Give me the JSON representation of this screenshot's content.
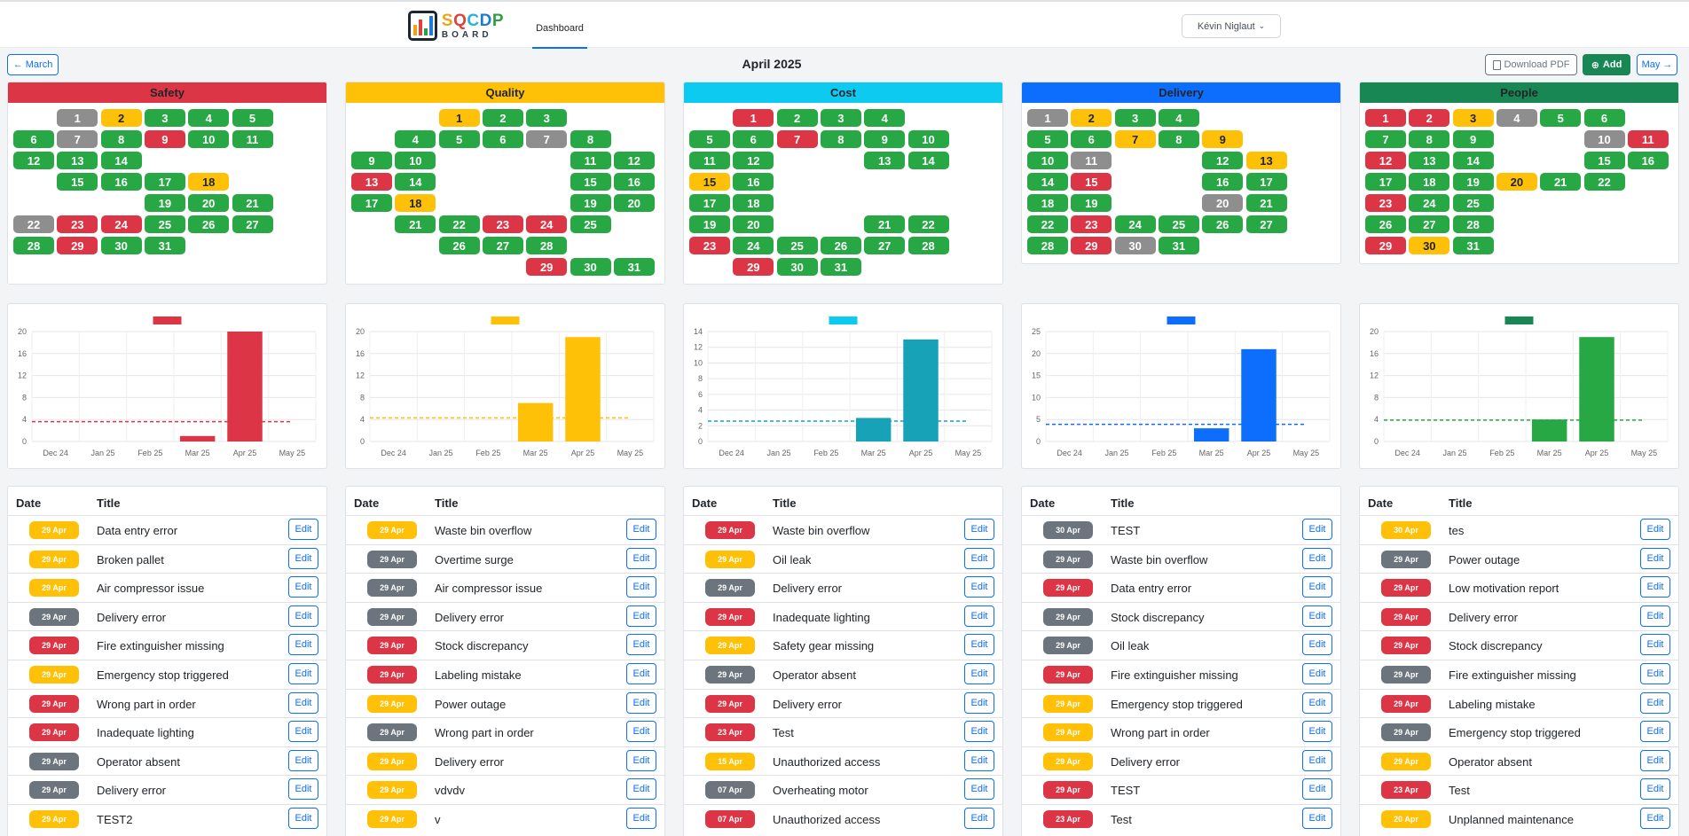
{
  "header": {
    "logo_text_top": "SQCDP",
    "logo_text_bottom": "BOARD",
    "nav_tab": "Dashboard",
    "user_name": "Kévin Niglaut"
  },
  "toolbar": {
    "month_title": "April 2025",
    "prev_label": "← March",
    "pdf_label": "Download PDF",
    "add_label": "Add",
    "next_label": "May →"
  },
  "status_colors": {
    "G": "#28a745",
    "Y": "#ffc107",
    "R": "#dc3545",
    "X": "#8e8e8e"
  },
  "categories": [
    {
      "name": "Safety",
      "color": "#dc3545",
      "header_text": "#212529",
      "calendar": "1X 2Y 3G 4G 5G 6G 7X 8G 9R 10G 11G 12G 13G 14G 15G 16G 17G 18Y 19G 20G 21G 22X 23R 24R 25G 26G 27G 28G 29R 30G 31G",
      "chart_data": {
        "type": "bar",
        "categories": [
          "Dec 24",
          "Jan 25",
          "Feb 25",
          "Mar 25",
          "Apr 25",
          "May 25"
        ],
        "values": [
          0,
          0,
          0,
          1,
          20,
          0
        ],
        "target": 3.6,
        "ylim": [
          0,
          20
        ],
        "yticks": [
          0,
          4,
          8,
          12,
          16,
          20
        ]
      },
      "rows": [
        {
          "date": "29 Apr",
          "status": "Y",
          "title": "Data entry error"
        },
        {
          "date": "29 Apr",
          "status": "Y",
          "title": "Broken pallet"
        },
        {
          "date": "29 Apr",
          "status": "Y",
          "title": "Air compressor issue"
        },
        {
          "date": "29 Apr",
          "status": "D",
          "title": "Delivery error"
        },
        {
          "date": "29 Apr",
          "status": "R",
          "title": "Fire extinguisher missing"
        },
        {
          "date": "29 Apr",
          "status": "Y",
          "title": "Emergency stop triggered"
        },
        {
          "date": "29 Apr",
          "status": "R",
          "title": "Wrong part in order"
        },
        {
          "date": "29 Apr",
          "status": "R",
          "title": "Inadequate lighting"
        },
        {
          "date": "29 Apr",
          "status": "D",
          "title": "Operator absent"
        },
        {
          "date": "29 Apr",
          "status": "D",
          "title": "Delivery error"
        },
        {
          "date": "29 Apr",
          "status": "Y",
          "title": "TEST2"
        }
      ]
    },
    {
      "name": "Quality",
      "color": "#ffc107",
      "header_text": "#212529",
      "calendar": "1Y 2G 3G 4G 5G 6G 7X 8G 9G 10G 11G 12G 13R 14G 15G 16G 17G 18Y 19G 20G 21G 22G 23R 24R 25G 26G 27G 28G 29R 30G 31G",
      "chart_data": {
        "type": "bar",
        "categories": [
          "Dec 24",
          "Jan 25",
          "Feb 25",
          "Mar 25",
          "Apr 25",
          "May 25"
        ],
        "values": [
          0,
          0,
          0,
          7,
          19,
          0
        ],
        "target": 4.3,
        "ylim": [
          0,
          20
        ],
        "yticks": [
          0,
          4,
          8,
          12,
          16,
          20
        ]
      },
      "rows": [
        {
          "date": "29 Apr",
          "status": "Y",
          "title": "Waste bin overflow"
        },
        {
          "date": "29 Apr",
          "status": "D",
          "title": "Overtime surge"
        },
        {
          "date": "29 Apr",
          "status": "D",
          "title": "Air compressor issue"
        },
        {
          "date": "29 Apr",
          "status": "D",
          "title": "Delivery error"
        },
        {
          "date": "29 Apr",
          "status": "R",
          "title": "Stock discrepancy"
        },
        {
          "date": "29 Apr",
          "status": "R",
          "title": "Labeling mistake"
        },
        {
          "date": "29 Apr",
          "status": "Y",
          "title": "Power outage"
        },
        {
          "date": "29 Apr",
          "status": "D",
          "title": "Wrong part in order"
        },
        {
          "date": "29 Apr",
          "status": "Y",
          "title": "Delivery error"
        },
        {
          "date": "29 Apr",
          "status": "Y",
          "title": "vdvdv"
        },
        {
          "date": "29 Apr",
          "status": "Y",
          "title": "v"
        }
      ]
    },
    {
      "name": "Cost",
      "color": "#0dcaf0",
      "header_text": "#212529",
      "calendar": "1R 2G 3G 4G 5G 6G 7R 8G 9G 10G 11G 12G 13G 14G 15Y 16G 17G 18G 19G 20G 21G 22G 23R 24G 25G 26G 27G 28G 29R 30G 31G",
      "chart_data": {
        "type": "bar",
        "categories": [
          "Dec 24",
          "Jan 25",
          "Feb 25",
          "Mar 25",
          "Apr 25",
          "May 25"
        ],
        "values": [
          0,
          0,
          0,
          3,
          13,
          0
        ],
        "target": 2.6,
        "ylim": [
          0,
          14
        ],
        "yticks": [
          0,
          2,
          4,
          6,
          8,
          10,
          12,
          14
        ]
      },
      "rows": [
        {
          "date": "29 Apr",
          "status": "R",
          "title": "Waste bin overflow"
        },
        {
          "date": "29 Apr",
          "status": "Y",
          "title": "Oil leak"
        },
        {
          "date": "29 Apr",
          "status": "D",
          "title": "Delivery error"
        },
        {
          "date": "29 Apr",
          "status": "R",
          "title": "Inadequate lighting"
        },
        {
          "date": "29 Apr",
          "status": "Y",
          "title": "Safety gear missing"
        },
        {
          "date": "29 Apr",
          "status": "D",
          "title": "Operator absent"
        },
        {
          "date": "29 Apr",
          "status": "R",
          "title": "Delivery error"
        },
        {
          "date": "23 Apr",
          "status": "R",
          "title": "Test"
        },
        {
          "date": "15 Apr",
          "status": "Y",
          "title": "Unauthorized access"
        },
        {
          "date": "07 Apr",
          "status": "D",
          "title": "Overheating motor"
        },
        {
          "date": "07 Apr",
          "status": "R",
          "title": "Unauthorized access"
        }
      ]
    },
    {
      "name": "Delivery",
      "color": "#0d6efd",
      "header_text": "#212529",
      "calendar": "1X 2Y 3G 4G 5G 6G 7Y 8G 9Y 10G 11X 12G 13Y 14G 15R 16G 17G 18G 19G 20X 21G 22G 23R 24G 25G 26G 27G 28G 29R 30X 31G",
      "chart_data": {
        "type": "bar",
        "categories": [
          "Dec 24",
          "Jan 25",
          "Feb 25",
          "Mar 25",
          "Apr 25",
          "May 25"
        ],
        "values": [
          0,
          0,
          0,
          3,
          21,
          0
        ],
        "target": 3.9,
        "ylim": [
          0,
          25
        ],
        "yticks": [
          0,
          5,
          10,
          15,
          20,
          25
        ]
      },
      "rows": [
        {
          "date": "30 Apr",
          "status": "D",
          "title": "TEST"
        },
        {
          "date": "29 Apr",
          "status": "D",
          "title": "Waste bin overflow"
        },
        {
          "date": "29 Apr",
          "status": "R",
          "title": "Data entry error"
        },
        {
          "date": "29 Apr",
          "status": "D",
          "title": "Stock discrepancy"
        },
        {
          "date": "29 Apr",
          "status": "D",
          "title": "Oil leak"
        },
        {
          "date": "29 Apr",
          "status": "R",
          "title": "Fire extinguisher missing"
        },
        {
          "date": "29 Apr",
          "status": "Y",
          "title": "Emergency stop triggered"
        },
        {
          "date": "29 Apr",
          "status": "Y",
          "title": "Wrong part in order"
        },
        {
          "date": "29 Apr",
          "status": "Y",
          "title": "Delivery error"
        },
        {
          "date": "29 Apr",
          "status": "R",
          "title": "TEST"
        },
        {
          "date": "23 Apr",
          "status": "R",
          "title": "Test"
        }
      ]
    },
    {
      "name": "People",
      "color": "#198754",
      "header_text": "#212529",
      "calendar": "1R 2R 3Y 4X 5G 6G 7G 8G 9G 10X 11R 12R 13G 14G 15G 16G 17G 18G 19G 20Y 21G 22G 23R 24G 25G 26G 27G 28G 29R 30Y 31G",
      "chart_data": {
        "type": "bar",
        "categories": [
          "Dec 24",
          "Jan 25",
          "Feb 25",
          "Mar 25",
          "Apr 25",
          "May 25"
        ],
        "values": [
          0,
          0,
          0,
          4,
          19,
          0
        ],
        "target": 3.9,
        "ylim": [
          0,
          20
        ],
        "yticks": [
          0,
          4,
          8,
          12,
          16,
          20
        ]
      },
      "rows": [
        {
          "date": "30 Apr",
          "status": "Y",
          "title": "tes"
        },
        {
          "date": "29 Apr",
          "status": "D",
          "title": "Power outage"
        },
        {
          "date": "29 Apr",
          "status": "R",
          "title": "Low motivation report"
        },
        {
          "date": "29 Apr",
          "status": "R",
          "title": "Delivery error"
        },
        {
          "date": "29 Apr",
          "status": "R",
          "title": "Stock discrepancy"
        },
        {
          "date": "29 Apr",
          "status": "D",
          "title": "Fire extinguisher missing"
        },
        {
          "date": "29 Apr",
          "status": "R",
          "title": "Labeling mistake"
        },
        {
          "date": "29 Apr",
          "status": "D",
          "title": "Emergency stop triggered"
        },
        {
          "date": "29 Apr",
          "status": "Y",
          "title": "Operator absent"
        },
        {
          "date": "23 Apr",
          "status": "R",
          "title": "Test"
        },
        {
          "date": "20 Apr",
          "status": "Y",
          "title": "Unplanned maintenance"
        }
      ]
    }
  ],
  "list_headers": {
    "date": "Date",
    "title": "Title",
    "edit": "Edit"
  },
  "chart_data": [
    {
      "type": "bar",
      "name": "Safety",
      "categories": [
        "Dec 24",
        "Jan 25",
        "Feb 25",
        "Mar 25",
        "Apr 25",
        "May 25"
      ],
      "values": [
        0,
        0,
        0,
        1,
        20,
        0
      ]
    },
    {
      "type": "bar",
      "name": "Quality",
      "categories": [
        "Dec 24",
        "Jan 25",
        "Feb 25",
        "Mar 25",
        "Apr 25",
        "May 25"
      ],
      "values": [
        0,
        0,
        0,
        7,
        19,
        0
      ]
    },
    {
      "type": "bar",
      "name": "Cost",
      "categories": [
        "Dec 24",
        "Jan 25",
        "Feb 25",
        "Mar 25",
        "Apr 25",
        "May 25"
      ],
      "values": [
        0,
        0,
        0,
        3,
        13,
        0
      ]
    },
    {
      "type": "bar",
      "name": "Delivery",
      "categories": [
        "Dec 24",
        "Jan 25",
        "Feb 25",
        "Mar 25",
        "Apr 25",
        "May 25"
      ],
      "values": [
        0,
        0,
        0,
        3,
        21,
        0
      ]
    },
    {
      "type": "bar",
      "name": "People",
      "categories": [
        "Dec 24",
        "Jan 25",
        "Feb 25",
        "Mar 25",
        "Apr 25",
        "May 25"
      ],
      "values": [
        0,
        0,
        0,
        4,
        19,
        0
      ]
    }
  ]
}
